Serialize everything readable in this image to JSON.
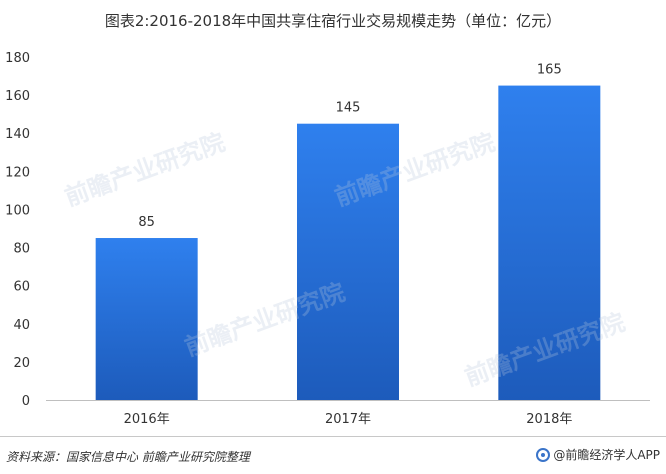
{
  "chart_data": {
    "type": "bar",
    "title": "图表2:2016-2018年中国共享住宿行业交易规模走势（单位：亿元）",
    "categories": [
      "2016年",
      "2017年",
      "2018年"
    ],
    "values": [
      85,
      145,
      165
    ],
    "ylim": [
      0,
      180
    ],
    "yticks": [
      0,
      20,
      40,
      60,
      80,
      100,
      120,
      140,
      160,
      180
    ],
    "xlabel": "",
    "ylabel": "",
    "grid": false,
    "bar_color": "#2e7ae0",
    "bar_color_dark": "#1d5bbb"
  },
  "footer": {
    "source": "资料来源：国家信息中心 前瞻产业研究院整理",
    "brand": "@前瞻经济学人APP"
  },
  "watermark": {
    "text": "前瞻产业研究院"
  }
}
